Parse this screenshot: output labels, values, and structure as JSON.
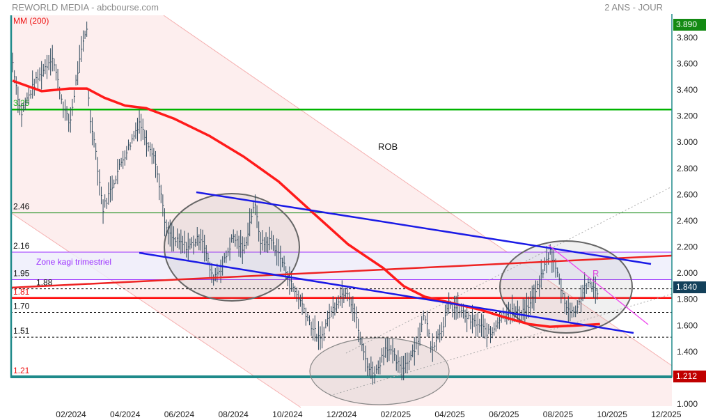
{
  "header": {
    "title": "REWORLD MEDIA - abcbourse.com",
    "period": "2 ANS - JOUR"
  },
  "chart_data": {
    "type": "line",
    "title": "REWORLD MEDIA",
    "x_unit": "months since 01/2024",
    "x_ticks": [
      {
        "t": 1,
        "label": "02/2024"
      },
      {
        "t": 3,
        "label": "04/2024"
      },
      {
        "t": 5,
        "label": "06/2024"
      },
      {
        "t": 7,
        "label": "08/2024"
      },
      {
        "t": 9,
        "label": "10/2024"
      },
      {
        "t": 11,
        "label": "12/2024"
      },
      {
        "t": 13,
        "label": "02/2025"
      },
      {
        "t": 15,
        "label": "04/2025"
      },
      {
        "t": 17,
        "label": "06/2025"
      },
      {
        "t": 19,
        "label": "08/2025"
      },
      {
        "t": 21,
        "label": "10/2025"
      },
      {
        "t": 23,
        "label": "12/2025"
      }
    ],
    "y_ticks": [
      "1.000",
      "1.400",
      "1.600",
      "1.800",
      "2.000",
      "2.200",
      "2.400",
      "2.600",
      "2.800",
      "3.000",
      "3.200",
      "3.400",
      "3.600",
      "3.800"
    ],
    "ylim": [
      1.0,
      3.95
    ],
    "price": {
      "t": [
        -1.16,
        -0.85,
        -0.6,
        -0.34,
        0.31,
        0.69,
        0.95,
        1.21,
        1.46,
        1.59,
        1.67,
        1.85,
        1.98,
        2.18,
        2.49,
        2.88,
        3.26,
        3.52,
        3.78,
        4.04,
        4.29,
        4.5,
        4.81,
        5.32,
        5.84,
        6.22,
        6.61,
        7.0,
        7.38,
        7.77,
        8.03,
        8.41,
        8.8,
        9.18,
        9.57,
        9.9,
        10.21,
        10.47,
        10.86,
        11.19,
        11.5,
        11.76,
        12.01,
        12.27,
        12.66,
        12.91,
        13.17,
        13.42,
        13.81,
        14.07,
        14.33,
        14.72,
        14.97,
        15.36,
        15.75,
        16.13,
        16.52,
        16.77,
        17.16,
        17.55,
        17.93,
        18.19,
        18.7,
        18.96,
        19.22,
        19.47,
        19.73,
        19.99,
        20.25,
        20.51
      ],
      "close": [
        3.61,
        3.21,
        3.34,
        3.45,
        3.66,
        3.29,
        3.13,
        3.5,
        3.77,
        3.88,
        3.18,
        3.05,
        2.81,
        2.49,
        2.65,
        2.86,
        3.02,
        3.16,
        3.02,
        2.92,
        2.65,
        2.33,
        2.25,
        2.2,
        2.28,
        1.96,
        2.06,
        2.28,
        2.17,
        2.54,
        2.22,
        2.25,
        2.09,
        1.9,
        1.75,
        1.59,
        1.48,
        1.64,
        1.8,
        1.88,
        1.69,
        1.43,
        1.27,
        1.24,
        1.45,
        1.37,
        1.27,
        1.32,
        1.48,
        1.69,
        1.43,
        1.59,
        1.75,
        1.72,
        1.64,
        1.59,
        1.53,
        1.64,
        1.72,
        1.69,
        1.75,
        1.85,
        2.17,
        2.01,
        1.8,
        1.69,
        1.75,
        1.9,
        1.9,
        1.85
      ]
    },
    "ma200": {
      "label": "MM (200)",
      "t": [
        -1.16,
        -0.08,
        0.95,
        1.59,
        2.23,
        3.0,
        3.78,
        4.81,
        6.1,
        7.38,
        8.67,
        9.95,
        11.24,
        12.53,
        13.3,
        14.07,
        15.1,
        16.13,
        16.9,
        17.93,
        18.7,
        19.73,
        20.55
      ],
      "values": [
        3.47,
        3.39,
        3.41,
        3.41,
        3.34,
        3.28,
        3.26,
        3.18,
        3.05,
        2.89,
        2.7,
        2.46,
        2.22,
        2.04,
        1.9,
        1.82,
        1.77,
        1.72,
        1.67,
        1.61,
        1.59,
        1.6,
        1.61
      ]
    },
    "levels": [
      {
        "value": 3.25,
        "label": "3.25",
        "color": "#00b400",
        "style": "solid-thick"
      },
      {
        "value": 2.46,
        "label": "2.46",
        "color": "#118811",
        "style": "solid"
      },
      {
        "value": 2.16,
        "label": "2.16",
        "color": "#9b30ff",
        "style": "solid"
      },
      {
        "value": 1.95,
        "label": "1.95",
        "color": "#9b30ff",
        "style": "solid"
      },
      {
        "value": 1.88,
        "label": "1.88",
        "color": "#000000",
        "style": "dotted"
      },
      {
        "value": 1.81,
        "label": "1.81",
        "color": "#ff0000",
        "style": "solid-thick"
      },
      {
        "value": 1.7,
        "label": "1.70",
        "color": "#000000",
        "style": "dotted"
      },
      {
        "value": 1.51,
        "label": "1.51",
        "color": "#000000",
        "style": "dotted"
      },
      {
        "value": 1.21,
        "label": "1.21",
        "color": "#ff0000",
        "style": "base"
      }
    ],
    "annotations": {
      "zone": "Zone kagi trimestriel",
      "rob": "ROB",
      "r": "R"
    },
    "badges": {
      "high": "3.890",
      "last": "1.840",
      "low": "1.212"
    },
    "colors": {
      "price": "#2f4a5c",
      "ma": "#ff1a1a",
      "channel": "#fdeeee",
      "trend": "#1a1ae6",
      "badge_high": "#138a13",
      "badge_last": "#13405a",
      "badge_low": "#c00000"
    }
  }
}
